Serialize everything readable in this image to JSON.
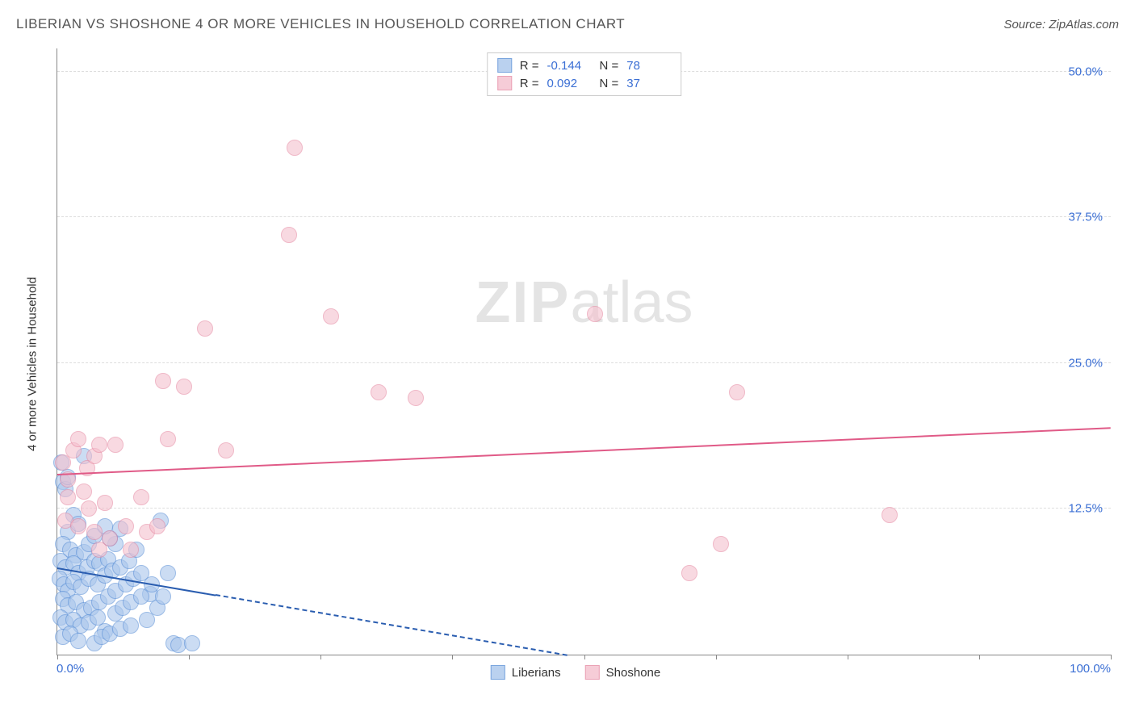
{
  "header": {
    "title": "LIBERIAN VS SHOSHONE 4 OR MORE VEHICLES IN HOUSEHOLD CORRELATION CHART",
    "source": "Source: ZipAtlas.com"
  },
  "watermark": {
    "bold": "ZIP",
    "rest": "atlas"
  },
  "chart": {
    "type": "scatter",
    "y_axis_label": "4 or more Vehicles in Household",
    "xlim": [
      0,
      100
    ],
    "ylim": [
      0,
      52
    ],
    "x_ticks": [
      0,
      12.5,
      25,
      37.5,
      50,
      62.5,
      75,
      87.5,
      100
    ],
    "x_tick_labels": {
      "0": "0.0%",
      "100": "100.0%"
    },
    "y_gridlines": [
      12.5,
      25.0,
      37.5,
      50.0
    ],
    "y_tick_labels": [
      "12.5%",
      "25.0%",
      "37.5%",
      "50.0%"
    ],
    "grid_color": "#dddddd",
    "axis_color": "#888888",
    "tick_label_color": "#3b6fd4",
    "point_radius": 10,
    "series": [
      {
        "name": "Liberians",
        "fill": "#a9c6ec",
        "stroke": "#5a8fd6",
        "fill_opacity": 0.6,
        "R": "-0.144",
        "N": "78",
        "trend": {
          "y_at_x0": 7.5,
          "y_at_x100": -8.0,
          "color": "#2a5db0",
          "width": 2.5,
          "solid_until_x": 15
        },
        "points": [
          [
            0.5,
            14.8
          ],
          [
            0.8,
            14.2
          ],
          [
            1.0,
            15.2
          ],
          [
            1.5,
            12.0
          ],
          [
            1.0,
            10.5
          ],
          [
            2.0,
            11.2
          ],
          [
            0.5,
            9.5
          ],
          [
            1.2,
            9.0
          ],
          [
            1.8,
            8.5
          ],
          [
            2.5,
            8.8
          ],
          [
            3.0,
            9.5
          ],
          [
            3.5,
            10.2
          ],
          [
            0.3,
            8.0
          ],
          [
            0.8,
            7.5
          ],
          [
            1.5,
            7.8
          ],
          [
            2.0,
            7.0
          ],
          [
            2.8,
            7.5
          ],
          [
            3.5,
            8.0
          ],
          [
            4.0,
            7.8
          ],
          [
            4.8,
            8.2
          ],
          [
            5.5,
            9.5
          ],
          [
            6.0,
            10.8
          ],
          [
            5.0,
            10.0
          ],
          [
            4.5,
            11.0
          ],
          [
            0.2,
            6.5
          ],
          [
            0.6,
            6.0
          ],
          [
            1.0,
            5.5
          ],
          [
            1.5,
            6.2
          ],
          [
            2.2,
            5.8
          ],
          [
            3.0,
            6.5
          ],
          [
            3.8,
            6.0
          ],
          [
            4.5,
            6.8
          ],
          [
            5.2,
            7.2
          ],
          [
            6.0,
            7.5
          ],
          [
            6.8,
            8.0
          ],
          [
            7.5,
            9.0
          ],
          [
            0.5,
            4.8
          ],
          [
            1.0,
            4.2
          ],
          [
            1.8,
            4.5
          ],
          [
            2.5,
            3.8
          ],
          [
            3.2,
            4.0
          ],
          [
            4.0,
            4.5
          ],
          [
            4.8,
            5.0
          ],
          [
            5.5,
            5.5
          ],
          [
            6.5,
            6.0
          ],
          [
            7.2,
            6.5
          ],
          [
            8.0,
            7.0
          ],
          [
            8.8,
            5.2
          ],
          [
            0.3,
            3.2
          ],
          [
            0.8,
            2.8
          ],
          [
            1.5,
            3.0
          ],
          [
            2.2,
            2.5
          ],
          [
            3.0,
            2.8
          ],
          [
            3.8,
            3.2
          ],
          [
            4.5,
            2.0
          ],
          [
            5.5,
            3.5
          ],
          [
            6.2,
            4.0
          ],
          [
            7.0,
            4.5
          ],
          [
            8.0,
            5.0
          ],
          [
            9.0,
            6.0
          ],
          [
            0.5,
            1.5
          ],
          [
            1.2,
            1.8
          ],
          [
            2.0,
            1.2
          ],
          [
            3.5,
            1.0
          ],
          [
            4.2,
            1.5
          ],
          [
            5.0,
            1.8
          ],
          [
            6.0,
            2.2
          ],
          [
            7.0,
            2.5
          ],
          [
            8.5,
            3.0
          ],
          [
            9.5,
            4.0
          ],
          [
            10.0,
            5.0
          ],
          [
            9.8,
            11.5
          ],
          [
            10.5,
            7.0
          ],
          [
            11.0,
            1.0
          ],
          [
            11.5,
            0.8
          ],
          [
            12.8,
            1.0
          ],
          [
            2.5,
            17.0
          ],
          [
            0.4,
            16.5
          ]
        ]
      },
      {
        "name": "Shoshone",
        "fill": "#f5c0ce",
        "stroke": "#e68aa3",
        "fill_opacity": 0.6,
        "R": "0.092",
        "N": "37",
        "trend": {
          "y_at_x0": 15.5,
          "y_at_x100": 19.5,
          "color": "#e05a87",
          "width": 2.5,
          "solid_until_x": 100
        },
        "points": [
          [
            0.5,
            16.5
          ],
          [
            1.0,
            15.0
          ],
          [
            1.5,
            17.5
          ],
          [
            2.0,
            18.5
          ],
          [
            2.8,
            16.0
          ],
          [
            3.5,
            17.0
          ],
          [
            4.0,
            18.0
          ],
          [
            1.0,
            13.5
          ],
          [
            2.5,
            14.0
          ],
          [
            3.0,
            12.5
          ],
          [
            4.5,
            13.0
          ],
          [
            5.5,
            18.0
          ],
          [
            0.8,
            11.5
          ],
          [
            2.0,
            11.0
          ],
          [
            3.5,
            10.5
          ],
          [
            5.0,
            10.0
          ],
          [
            6.5,
            11.0
          ],
          [
            8.0,
            13.5
          ],
          [
            7.0,
            9.0
          ],
          [
            8.5,
            10.5
          ],
          [
            9.5,
            11.0
          ],
          [
            10.5,
            18.5
          ],
          [
            12.0,
            23.0
          ],
          [
            16.0,
            17.5
          ],
          [
            22.5,
            43.5
          ],
          [
            22.0,
            36.0
          ],
          [
            26.0,
            29.0
          ],
          [
            30.5,
            22.5
          ],
          [
            34.0,
            22.0
          ],
          [
            51.0,
            29.2
          ],
          [
            64.5,
            22.5
          ],
          [
            60.0,
            7.0
          ],
          [
            63.0,
            9.5
          ],
          [
            79.0,
            12.0
          ],
          [
            14.0,
            28.0
          ],
          [
            10.0,
            23.5
          ],
          [
            4.0,
            9.0
          ]
        ]
      }
    ]
  },
  "legend_bottom": [
    {
      "label": "Liberians",
      "fill": "#a9c6ec",
      "stroke": "#5a8fd6"
    },
    {
      "label": "Shoshone",
      "fill": "#f5c0ce",
      "stroke": "#e68aa3"
    }
  ]
}
